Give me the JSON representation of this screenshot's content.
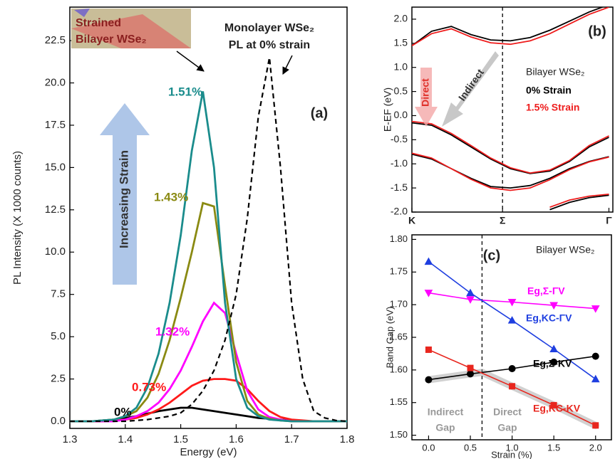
{
  "chart_data": [
    {
      "type": "line",
      "xlabel": "Energy (eV)",
      "ylabel": "PL Intensity (X 1000 counts)",
      "xlim": [
        1.3,
        1.8
      ],
      "ylim": [
        -0.42,
        24.48
      ],
      "xticks": [
        1.3,
        1.4,
        1.5,
        1.6,
        1.7,
        1.8
      ],
      "yticks": [
        {
          "value": 0,
          "label": "0.0"
        },
        2.5,
        {
          "value": 5,
          "label": "5.0"
        },
        7.5,
        {
          "value": 10,
          "label": "10.0"
        },
        12.5,
        {
          "value": 15,
          "label": "15.0"
        },
        17.5,
        {
          "value": 20,
          "label": "20.0"
        },
        22.5
      ],
      "x": [
        1.3,
        1.32,
        1.34,
        1.36,
        1.38,
        1.4,
        1.42,
        1.44,
        1.46,
        1.48,
        1.5,
        1.52,
        1.54,
        1.56,
        1.58,
        1.6,
        1.62,
        1.64,
        1.66,
        1.68,
        1.7,
        1.72,
        1.74,
        1.76,
        1.78,
        1.8
      ],
      "series": [
        {
          "name": "0%",
          "color": "#000000",
          "values": [
            0,
            0,
            0,
            0.05,
            0.1,
            0.2,
            0.3,
            0.45,
            0.6,
            0.7,
            0.8,
            0.8,
            0.7,
            0.6,
            0.5,
            0.4,
            0.3,
            0.2,
            0.15,
            0.1,
            0.05,
            0,
            0,
            0,
            0,
            0
          ]
        },
        {
          "name": "0.73%",
          "color": "#ff1a1a",
          "values": [
            0,
            0,
            0,
            0,
            0.05,
            0.1,
            0.2,
            0.4,
            0.7,
            1.1,
            1.6,
            2.1,
            2.4,
            2.5,
            2.5,
            2.4,
            1.9,
            1.2,
            0.6,
            0.25,
            0.1,
            0.05,
            0,
            0,
            0,
            0
          ]
        },
        {
          "name": "1.32%",
          "color": "#ff00ff",
          "values": [
            0,
            0,
            0,
            0,
            0,
            0.1,
            0.3,
            0.6,
            1.1,
            1.9,
            3.0,
            4.4,
            5.9,
            7.0,
            6.4,
            4.0,
            1.8,
            0.7,
            0.25,
            0.1,
            0,
            0,
            0,
            0,
            0,
            0
          ]
        },
        {
          "name": "1.43%",
          "color": "#8a8a12",
          "values": [
            0,
            0,
            0,
            0.05,
            0.1,
            0.3,
            0.6,
            1.4,
            2.8,
            4.8,
            7.3,
            10,
            12.9,
            12.7,
            8,
            3.5,
            1.2,
            0.4,
            0.15,
            0.05,
            0,
            0,
            0,
            0,
            0,
            0
          ]
        },
        {
          "name": "1.51%",
          "color": "#1a8c8c",
          "values": [
            0,
            0,
            0,
            0.05,
            0.1,
            0.3,
            0.8,
            2.0,
            4.0,
            7.0,
            11.0,
            16.0,
            19.5,
            15.0,
            7.0,
            2.5,
            0.8,
            0.3,
            0.1,
            0.05,
            0,
            0,
            0,
            0,
            0,
            0
          ]
        },
        {
          "name": "Monolayer WSe₂",
          "color": "#000000",
          "dash": true,
          "values": [
            0,
            0,
            0,
            0,
            0,
            0,
            0.05,
            0.1,
            0.2,
            0.3,
            0.5,
            1.0,
            1.8,
            3.0,
            4.8,
            7.5,
            12,
            18,
            21.5,
            15,
            7,
            2.5,
            0.6,
            0.2,
            0.05,
            0
          ]
        }
      ],
      "note": "PL at 0% strain",
      "inset_label": [
        "Strained",
        "Bilayer WSe₂"
      ],
      "arrow_label": "Increasing Strain",
      "panel_label": "(a)"
    },
    {
      "type": "band-structure",
      "ylabel": "E-EF (eV)",
      "xlim": [
        0,
        1.02
      ],
      "ylim": [
        -2,
        2.25
      ],
      "xticks": [
        {
          "value": 0,
          "label": "K"
        },
        {
          "value": 0.46,
          "label": "Σ"
        },
        {
          "value": 1,
          "label": "Γ"
        }
      ],
      "yticks": [
        {
          "value": -2,
          "label": "-2.0"
        },
        -1.5,
        {
          "value": -1,
          "label": "-1.0"
        },
        -0.5,
        {
          "value": 0,
          "label": "0.0"
        },
        0.5,
        {
          "value": 1,
          "label": "1.0"
        },
        1.5,
        {
          "value": 2,
          "label": "2.0"
        }
      ],
      "vline": 0.46,
      "x": [
        0,
        0.1,
        0.2,
        0.3,
        0.4,
        0.5,
        0.6,
        0.7,
        0.8,
        0.9,
        1.0
      ],
      "series": [
        {
          "name": "0% Strain",
          "color": "#000000",
          "bands": [
            [
              1.45,
              1.75,
              1.85,
              1.68,
              1.57,
              1.55,
              1.62,
              1.77,
              1.96,
              2.15,
              2.3
            ],
            [
              -0.15,
              -0.2,
              -0.4,
              -0.65,
              -0.9,
              -1.1,
              -1.2,
              -1.15,
              -0.95,
              -0.65,
              -0.45
            ],
            [
              -0.8,
              -0.9,
              -1.1,
              -1.3,
              -1.47,
              -1.5,
              -1.45,
              -1.3,
              -1.1,
              -0.95,
              -0.85
            ],
            [
              null,
              null,
              null,
              null,
              null,
              null,
              null,
              -1.95,
              -1.8,
              -1.7,
              -1.65
            ]
          ]
        },
        {
          "name": "1.5% Strain",
          "color": "#ee1c1c",
          "bands": [
            [
              1.45,
              1.7,
              1.8,
              1.63,
              1.51,
              1.48,
              1.55,
              1.7,
              1.9,
              2.1,
              2.25
            ],
            [
              -0.12,
              -0.17,
              -0.37,
              -0.62,
              -0.88,
              -1.08,
              -1.19,
              -1.13,
              -0.93,
              -0.62,
              -0.42
            ],
            [
              -0.78,
              -0.88,
              -1.1,
              -1.32,
              -1.5,
              -1.55,
              -1.5,
              -1.33,
              -1.12,
              -0.96,
              -0.86
            ],
            [
              null,
              null,
              null,
              null,
              null,
              null,
              null,
              -1.9,
              -1.75,
              -1.67,
              -1.63
            ]
          ]
        }
      ],
      "legend_title": "Bilayer WSe₂",
      "direct_label": "Direct",
      "indirect_label": "Indirect",
      "panel_label": "(b)"
    },
    {
      "type": "scatter",
      "xlabel": "Strain (%)",
      "ylabel": "Band Gap (eV)",
      "xlim": [
        -0.2,
        2.19
      ],
      "ylim": [
        1.493,
        1.807
      ],
      "xticks": [
        {
          "value": 0,
          "label": "0.0"
        },
        0.5,
        {
          "value": 1,
          "label": "1.0"
        },
        1.5,
        {
          "value": 2,
          "label": "2.0"
        }
      ],
      "yticks": [
        {
          "value": 1.5,
          "label": "1.50"
        },
        1.55,
        {
          "value": 1.6,
          "label": "1.60"
        },
        1.65,
        {
          "value": 1.7,
          "label": "1.70"
        },
        1.75,
        {
          "value": 1.8,
          "label": "1.80"
        }
      ],
      "vline": 0.64,
      "x": [
        0,
        0.5,
        1,
        1.5,
        2
      ],
      "series": [
        {
          "name": "Eg,Σ-ΓV",
          "color": "#ff00ff",
          "marker": "triangle-down",
          "values": [
            1.718,
            1.708,
            1.704,
            1.699,
            1.694
          ]
        },
        {
          "name": "Eg,KC-ΓV",
          "color": "#1f3fe0",
          "marker": "triangle",
          "values": [
            1.766,
            1.718,
            1.676,
            1.632,
            1.586
          ]
        },
        {
          "name": "Eg,Σ-KV",
          "color": "#000000",
          "marker": "circle",
          "values": [
            1.585,
            1.594,
            1.602,
            1.612,
            1.621
          ]
        },
        {
          "name": "Eg,KC-KV",
          "color": "#e8261e",
          "marker": "square",
          "values": [
            1.631,
            1.603,
            1.575,
            1.546,
            1.515
          ]
        }
      ],
      "legend_title": "Bilayer WSe₂",
      "indirect_label": [
        "Indirect",
        "Gap"
      ],
      "direct_label": [
        "Direct",
        "Gap"
      ],
      "panel_label": "(c)"
    }
  ]
}
